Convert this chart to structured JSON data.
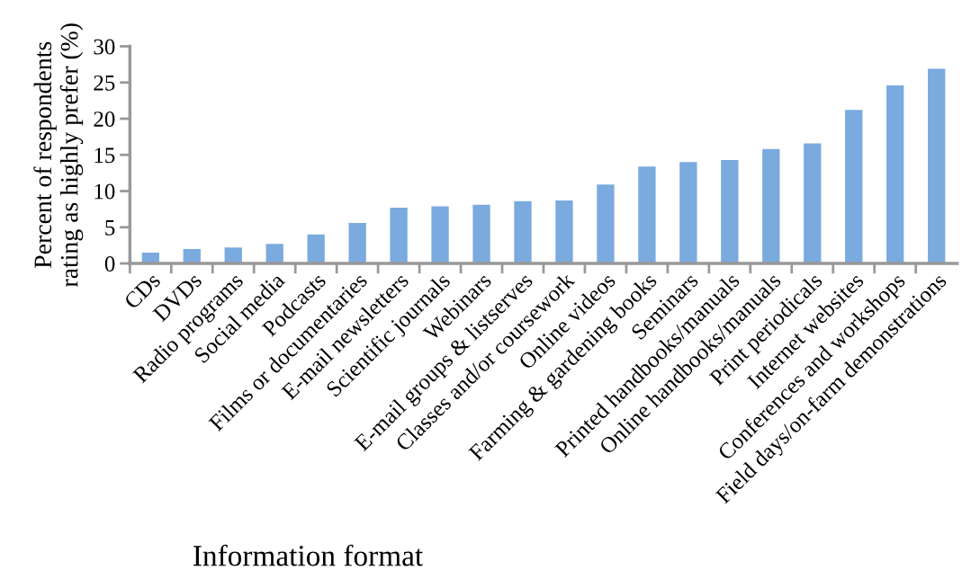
{
  "chart_data": {
    "type": "bar",
    "xlabel": "Information format",
    "ylabel": "Percent of respondents\nrating as highly prefer (%)",
    "categories": [
      "CDs",
      "DVDs",
      "Radio programs",
      "Social media",
      "Podcasts",
      "Films or documentaries",
      "E-mail newsletters",
      "Scientific journals",
      "Webinars",
      "E-mail groups & listserves",
      "Classes and/or coursework",
      "Online videos",
      "Farming & gardening books",
      "Seminars",
      "Printed handbooks/manuals",
      "Online handbooks/manuals",
      "Print periodicals",
      "Internet websites",
      "Conferences and workshops",
      "Field days/on-farm demonstrations"
    ],
    "values": [
      1.5,
      2,
      2.2,
      2.7,
      4,
      5.6,
      7.7,
      7.9,
      8.1,
      8.6,
      8.7,
      10.9,
      13.4,
      14,
      14.3,
      15.8,
      16.6,
      21.2,
      24.6,
      26.9
    ],
    "color": "#7aaade",
    "ylim": [
      0,
      30
    ],
    "yticks": [
      0,
      5,
      10,
      15,
      20,
      25,
      30
    ],
    "grid": false,
    "legend": false
  }
}
